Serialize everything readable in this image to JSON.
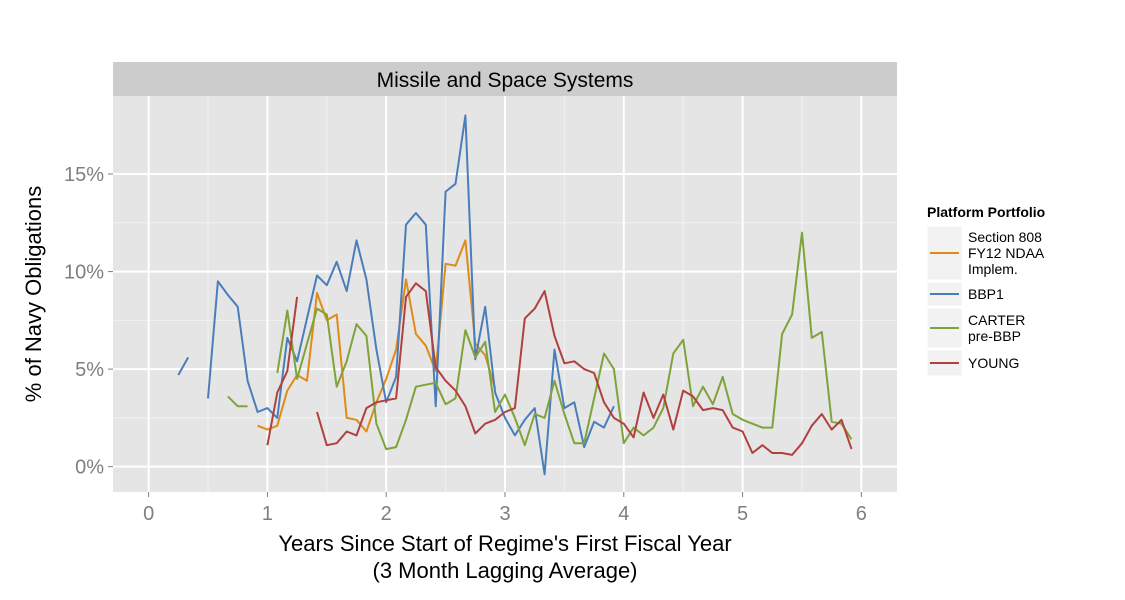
{
  "chart_data": {
    "type": "line",
    "title": "Missile and Space Systems",
    "xlabel_line1": "Years Since Start of Regime's First Fiscal Year",
    "xlabel_line2": "(3 Month Lagging Average)",
    "ylabel": "% of Navy Obligations",
    "xlim": [
      -0.3,
      6.3
    ],
    "ylim": [
      -0.013,
      0.19
    ],
    "x_ticks": [
      0,
      1,
      2,
      3,
      4,
      5,
      6
    ],
    "y_ticks": [
      0,
      0.05,
      0.1,
      0.15
    ],
    "x_tick_labels": [
      "0",
      "1",
      "2",
      "3",
      "4",
      "5",
      "6"
    ],
    "y_tick_labels": [
      "0%",
      "5%",
      "10%",
      "15%"
    ],
    "grid": true,
    "legend": {
      "title": "Platform Portfolio",
      "position": "right",
      "entries": [
        {
          "key": "section808",
          "lines": [
            "Section 808",
            "FY12 NDAA",
            "Implem."
          ]
        },
        {
          "key": "bbp1",
          "lines": [
            "BBP1"
          ]
        },
        {
          "key": "carter",
          "lines": [
            "CARTER",
            "pre-BBP"
          ]
        },
        {
          "key": "young",
          "lines": [
            "YOUNG"
          ]
        }
      ]
    },
    "series": [
      {
        "key": "section808",
        "color": "#E08A1A",
        "segments": [
          [
            [
              0.917,
              0.021
            ],
            [
              1.0,
              0.019
            ],
            [
              1.083,
              0.021
            ],
            [
              1.167,
              0.039
            ],
            [
              1.25,
              0.047
            ],
            [
              1.333,
              0.044
            ],
            [
              1.417,
              0.089
            ],
            [
              1.5,
              0.075
            ],
            [
              1.583,
              0.078
            ],
            [
              1.667,
              0.025
            ],
            [
              1.75,
              0.024
            ],
            [
              1.833,
              0.018
            ],
            [
              1.917,
              0.033
            ],
            [
              2.0,
              0.045
            ],
            [
              2.083,
              0.06
            ],
            [
              2.167,
              0.096
            ],
            [
              2.25,
              0.068
            ],
            [
              2.333,
              0.062
            ],
            [
              2.417,
              0.049
            ],
            [
              2.5,
              0.104
            ],
            [
              2.583,
              0.103
            ],
            [
              2.667,
              0.116
            ],
            [
              2.75,
              0.063
            ],
            [
              2.833,
              0.057
            ],
            [
              2.917,
              0.04
            ]
          ]
        ]
      },
      {
        "key": "bbp1",
        "color": "#4A7EBB",
        "segments": [
          [
            [
              0.25,
              0.047
            ],
            [
              0.333,
              0.056
            ]
          ],
          [
            [
              0.5,
              0.035
            ],
            [
              0.583,
              0.095
            ],
            [
              0.667,
              0.088
            ],
            [
              0.75,
              0.082
            ],
            [
              0.833,
              0.044
            ],
            [
              0.917,
              0.028
            ],
            [
              1.0,
              0.03
            ],
            [
              1.083,
              0.025
            ],
            [
              1.167,
              0.066
            ],
            [
              1.25,
              0.054
            ],
            [
              1.333,
              0.076
            ],
            [
              1.417,
              0.098
            ],
            [
              1.5,
              0.093
            ],
            [
              1.583,
              0.105
            ],
            [
              1.667,
              0.09
            ],
            [
              1.75,
              0.116
            ],
            [
              1.833,
              0.096
            ],
            [
              1.917,
              0.06
            ],
            [
              2.0,
              0.033
            ],
            [
              2.083,
              0.046
            ],
            [
              2.167,
              0.124
            ],
            [
              2.25,
              0.13
            ],
            [
              2.333,
              0.124
            ],
            [
              2.417,
              0.031
            ],
            [
              2.5,
              0.141
            ],
            [
              2.583,
              0.145
            ],
            [
              2.667,
              0.18
            ],
            [
              2.75,
              0.055
            ],
            [
              2.833,
              0.082
            ],
            [
              2.917,
              0.038
            ],
            [
              3.0,
              0.025
            ],
            [
              3.083,
              0.016
            ],
            [
              3.167,
              0.024
            ],
            [
              3.25,
              0.03
            ],
            [
              3.333,
              -0.004
            ],
            [
              3.417,
              0.06
            ],
            [
              3.5,
              0.03
            ],
            [
              3.583,
              0.033
            ],
            [
              3.667,
              0.01
            ],
            [
              3.75,
              0.023
            ],
            [
              3.833,
              0.02
            ],
            [
              3.917,
              0.031
            ]
          ]
        ]
      },
      {
        "key": "carter",
        "color": "#7FA33A",
        "segments": [
          [
            [
              0.667,
              0.036
            ],
            [
              0.75,
              0.031
            ],
            [
              0.833,
              0.031
            ]
          ],
          [
            [
              1.083,
              0.048
            ],
            [
              1.167,
              0.08
            ],
            [
              1.25,
              0.045
            ],
            [
              1.333,
              0.063
            ],
            [
              1.417,
              0.081
            ],
            [
              1.5,
              0.078
            ],
            [
              1.583,
              0.041
            ],
            [
              1.667,
              0.054
            ],
            [
              1.75,
              0.073
            ],
            [
              1.833,
              0.067
            ],
            [
              1.917,
              0.022
            ],
            [
              2.0,
              0.009
            ],
            [
              2.083,
              0.01
            ],
            [
              2.167,
              0.024
            ],
            [
              2.25,
              0.041
            ],
            [
              2.333,
              0.042
            ],
            [
              2.417,
              0.043
            ],
            [
              2.5,
              0.032
            ],
            [
              2.583,
              0.035
            ],
            [
              2.667,
              0.07
            ],
            [
              2.75,
              0.056
            ],
            [
              2.833,
              0.064
            ],
            [
              2.917,
              0.028
            ],
            [
              3.0,
              0.037
            ],
            [
              3.083,
              0.025
            ],
            [
              3.167,
              0.011
            ],
            [
              3.25,
              0.027
            ],
            [
              3.333,
              0.025
            ],
            [
              3.417,
              0.044
            ],
            [
              3.5,
              0.027
            ],
            [
              3.583,
              0.012
            ],
            [
              3.667,
              0.012
            ],
            [
              3.75,
              0.035
            ],
            [
              3.833,
              0.058
            ],
            [
              3.917,
              0.05
            ],
            [
              4.0,
              0.012
            ],
            [
              4.083,
              0.02
            ],
            [
              4.167,
              0.016
            ],
            [
              4.25,
              0.02
            ],
            [
              4.333,
              0.03
            ],
            [
              4.417,
              0.058
            ],
            [
              4.5,
              0.065
            ],
            [
              4.583,
              0.031
            ],
            [
              4.667,
              0.041
            ],
            [
              4.75,
              0.032
            ],
            [
              4.833,
              0.046
            ],
            [
              4.917,
              0.027
            ],
            [
              5.0,
              0.024
            ],
            [
              5.083,
              0.022
            ],
            [
              5.167,
              0.02
            ],
            [
              5.25,
              0.02
            ],
            [
              5.333,
              0.068
            ],
            [
              5.417,
              0.078
            ],
            [
              5.5,
              0.12
            ],
            [
              5.583,
              0.066
            ],
            [
              5.667,
              0.069
            ],
            [
              5.75,
              0.023
            ],
            [
              5.833,
              0.022
            ],
            [
              5.917,
              0.014
            ]
          ]
        ]
      },
      {
        "key": "young",
        "color": "#B0413E",
        "segments": [
          [
            [
              1.0,
              0.011
            ],
            [
              1.083,
              0.038
            ],
            [
              1.167,
              0.049
            ],
            [
              1.25,
              0.087
            ]
          ],
          [
            [
              1.417,
              0.028
            ],
            [
              1.5,
              0.011
            ],
            [
              1.583,
              0.012
            ],
            [
              1.667,
              0.018
            ],
            [
              1.75,
              0.016
            ],
            [
              1.833,
              0.03
            ],
            [
              1.917,
              0.033
            ],
            [
              2.0,
              0.034
            ],
            [
              2.083,
              0.035
            ],
            [
              2.167,
              0.087
            ],
            [
              2.25,
              0.094
            ],
            [
              2.333,
              0.09
            ],
            [
              2.417,
              0.051
            ],
            [
              2.5,
              0.044
            ],
            [
              2.583,
              0.039
            ],
            [
              2.667,
              0.031
            ],
            [
              2.75,
              0.017
            ],
            [
              2.833,
              0.022
            ],
            [
              2.917,
              0.024
            ],
            [
              3.0,
              0.028
            ],
            [
              3.083,
              0.03
            ],
            [
              3.167,
              0.076
            ],
            [
              3.25,
              0.081
            ],
            [
              3.333,
              0.09
            ],
            [
              3.417,
              0.067
            ],
            [
              3.5,
              0.053
            ],
            [
              3.583,
              0.054
            ],
            [
              3.667,
              0.05
            ],
            [
              3.75,
              0.048
            ],
            [
              3.833,
              0.033
            ],
            [
              3.917,
              0.025
            ],
            [
              4.0,
              0.022
            ],
            [
              4.083,
              0.015
            ],
            [
              4.167,
              0.038
            ],
            [
              4.25,
              0.025
            ],
            [
              4.333,
              0.037
            ],
            [
              4.417,
              0.019
            ],
            [
              4.5,
              0.039
            ],
            [
              4.583,
              0.036
            ],
            [
              4.667,
              0.029
            ],
            [
              4.75,
              0.03
            ],
            [
              4.833,
              0.029
            ],
            [
              4.917,
              0.02
            ],
            [
              5.0,
              0.018
            ],
            [
              5.083,
              0.007
            ],
            [
              5.167,
              0.011
            ],
            [
              5.25,
              0.007
            ],
            [
              5.333,
              0.007
            ],
            [
              5.417,
              0.006
            ],
            [
              5.5,
              0.012
            ],
            [
              5.583,
              0.021
            ],
            [
              5.667,
              0.027
            ],
            [
              5.75,
              0.019
            ],
            [
              5.833,
              0.024
            ],
            [
              5.917,
              0.009
            ]
          ]
        ]
      }
    ]
  }
}
